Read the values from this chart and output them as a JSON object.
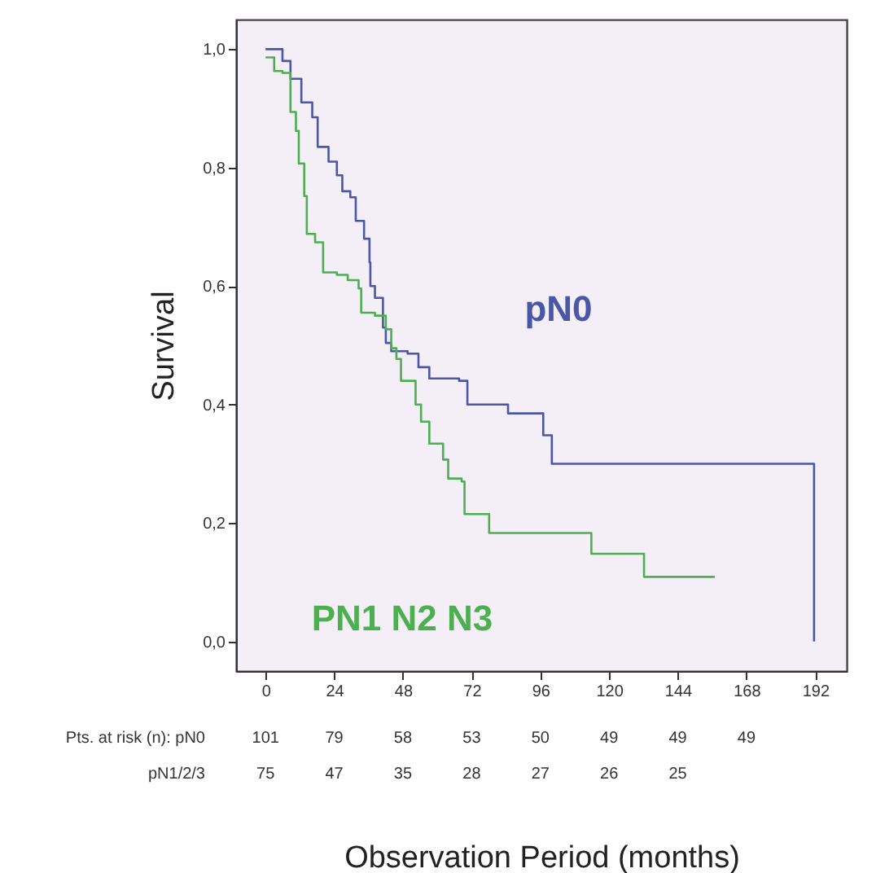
{
  "chart_data": {
    "type": "step",
    "xlabel": "Observation Period (months)",
    "ylabel": "Survival",
    "xlim": [
      -10.3,
      203
    ],
    "ylim": [
      -0.05,
      1.05
    ],
    "xticks": [
      0,
      24,
      48,
      72,
      96,
      120,
      144,
      168,
      192
    ],
    "yticks": [
      {
        "value": 0,
        "label": "0,0"
      },
      {
        "value": 0.2,
        "label": "0,2"
      },
      {
        "value": 0.4,
        "label": "0,4"
      },
      {
        "value": 0.6,
        "label": "0,6"
      },
      {
        "value": 0.8,
        "label": "0,8"
      },
      {
        "value": 1,
        "label": "1,0"
      }
    ],
    "grid": false,
    "series": [
      {
        "name": "pN0",
        "color": "#4a56a6",
        "x": [
          0,
          2.7,
          5.9,
          8.7,
          12.5,
          16.3,
          18.2,
          22,
          24.9,
          26.8,
          29.6,
          31.5,
          34.4,
          36.3,
          36.6,
          38.2,
          41,
          42,
          43.9,
          49.6,
          53.4,
          57.2,
          67.6,
          70.5,
          82.8,
          84.7,
          94.2,
          97,
          100,
          191.6,
          191.6
        ],
        "values": [
          1.0,
          1.0,
          0.98,
          0.95,
          0.91,
          0.885,
          0.835,
          0.81,
          0.787,
          0.76,
          0.75,
          0.71,
          0.68,
          0.64,
          0.6,
          0.58,
          0.53,
          0.504,
          0.49,
          0.486,
          0.463,
          0.444,
          0.44,
          0.4,
          0.4,
          0.385,
          0.385,
          0.348,
          0.3,
          0.3,
          0.0
        ]
      },
      {
        "name": "PN1 N2 N3",
        "color": "#4caf50",
        "x": [
          0,
          3.0,
          5.9,
          8.7,
          10.6,
          11.6,
          13.5,
          14.4,
          17.3,
          20.1,
          24.9,
          28.7,
          32.5,
          33.4,
          38.2,
          42,
          43.9,
          45.7,
          47.3,
          52.4,
          54.3,
          57.2,
          62,
          63.8,
          68.5,
          69.5,
          77.1,
          78.1,
          113.2,
          113.8,
          131.2,
          132.2,
          156.9
        ],
        "values": [
          0.986,
          0.963,
          0.96,
          0.894,
          0.862,
          0.807,
          0.752,
          0.688,
          0.674,
          0.623,
          0.619,
          0.61,
          0.596,
          0.555,
          0.55,
          0.527,
          0.495,
          0.477,
          0.44,
          0.4,
          0.371,
          0.334,
          0.307,
          0.275,
          0.27,
          0.215,
          0.215,
          0.183,
          0.183,
          0.148,
          0.148,
          0.109,
          0.109
        ]
      }
    ],
    "annotations": [
      "Pts. at risk (n): pN0",
      "101",
      "79",
      "58",
      "53",
      "50",
      "49",
      "49",
      "49",
      "pN1/2/3",
      "75",
      "47",
      "35",
      "28",
      "27",
      "26",
      "25"
    ]
  }
}
